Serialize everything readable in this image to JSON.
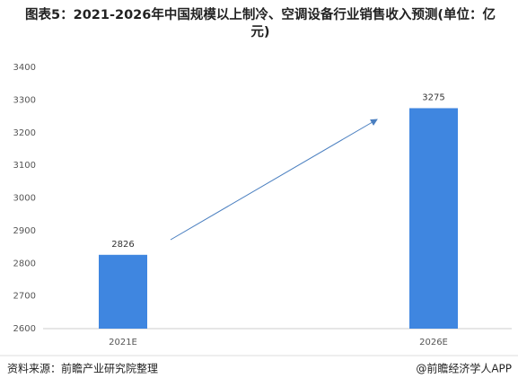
{
  "chart_data": {
    "type": "bar",
    "title": "图表5：2021-2026年中国规模以上制冷、空调设备行业销售收入预测(单位：亿元)",
    "categories": [
      "2021E",
      "2026E"
    ],
    "values": [
      2826,
      3275
    ],
    "color": "#3f86e0",
    "ylim": [
      2600,
      3400
    ],
    "yticks": [
      2600,
      2700,
      2800,
      2900,
      3000,
      3100,
      3200,
      3300,
      3400
    ],
    "grid": false,
    "source": "资料来源：前瞻产业研究院整理",
    "credit": "@前瞻经济学人APP"
  }
}
